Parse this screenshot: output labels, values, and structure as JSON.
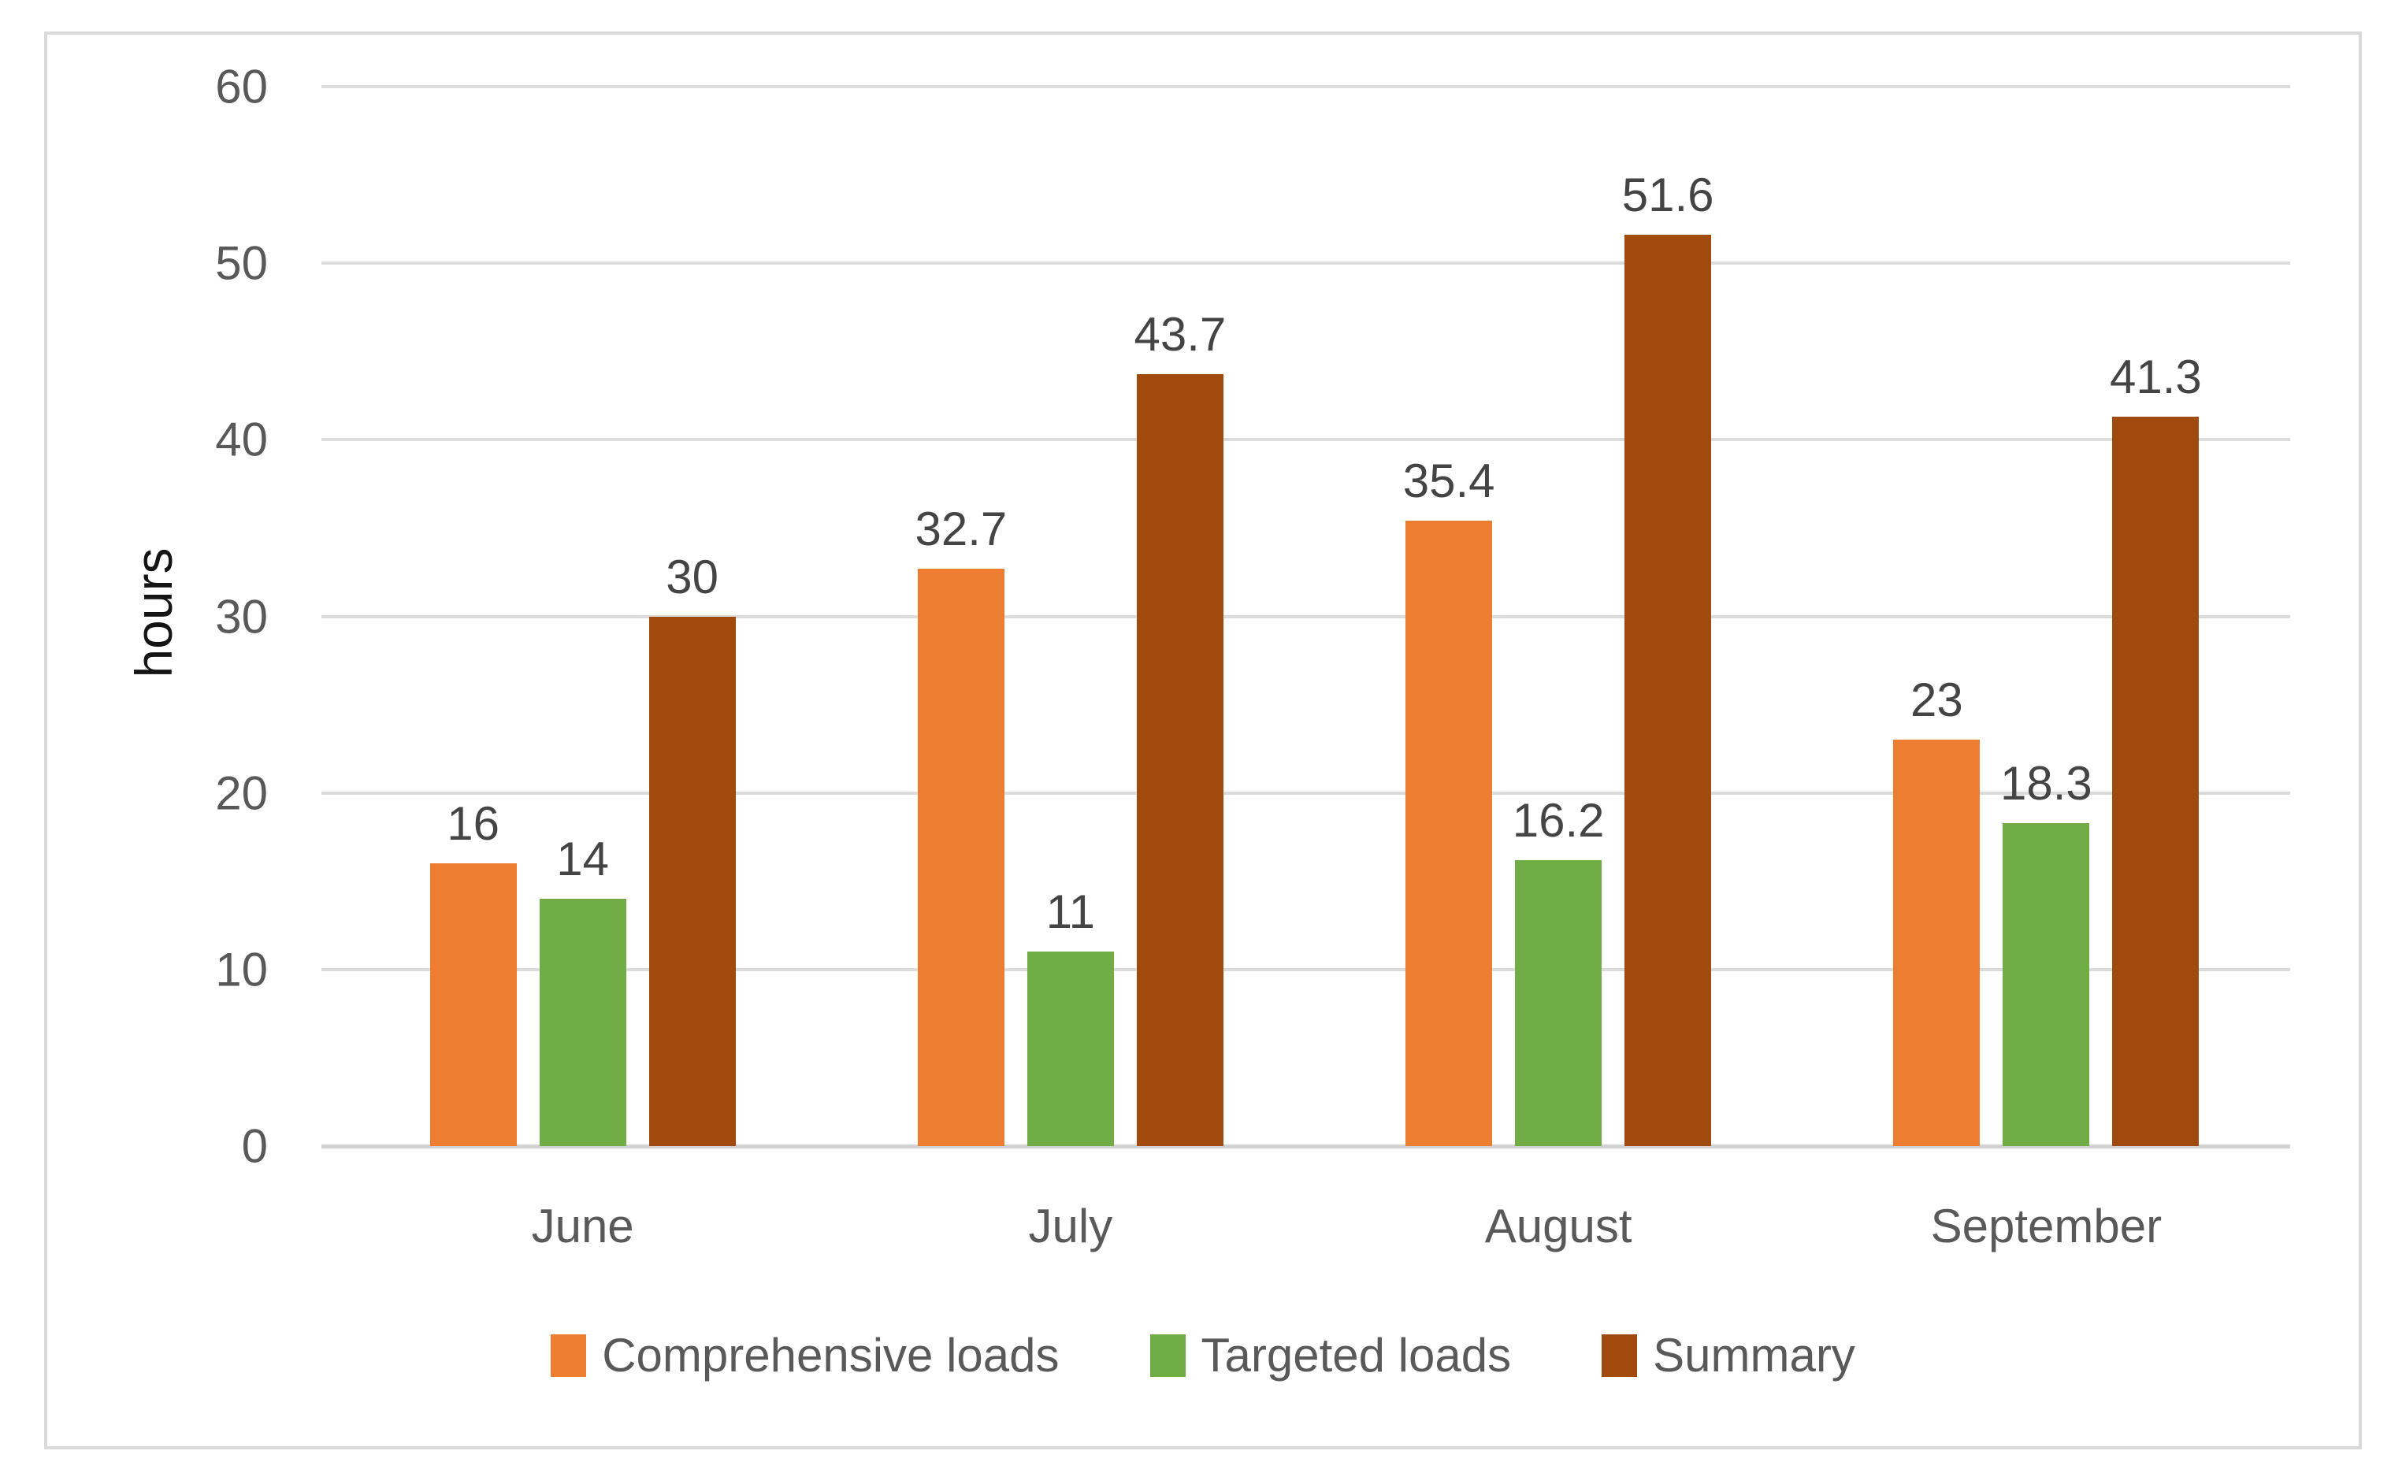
{
  "chart_data": {
    "type": "bar",
    "title": "",
    "xlabel": "",
    "ylabel": "hours",
    "ylim": [
      0,
      60
    ],
    "ytick_step": 10,
    "yticks": [
      "0",
      "10",
      "20",
      "30",
      "40",
      "50",
      "60"
    ],
    "categories": [
      "June",
      "July",
      "August",
      "September"
    ],
    "series": [
      {
        "name": "Comprehensive loads",
        "color": "#ED7D31",
        "values": [
          16,
          32.7,
          35.4,
          23
        ],
        "labels": [
          "16",
          "32.7",
          "35.4",
          "23"
        ]
      },
      {
        "name": "Targeted loads",
        "color": "#70AD47",
        "values": [
          14,
          11,
          16.2,
          18.3
        ],
        "labels": [
          "14",
          "11",
          "16.2",
          "18.3"
        ]
      },
      {
        "name": "Summary",
        "color": "#A04A0D",
        "values": [
          30,
          43.7,
          51.6,
          41.3
        ],
        "labels": [
          "30",
          "43.7",
          "51.6",
          "41.3"
        ]
      }
    ],
    "grid": true,
    "legend_position": "bottom"
  },
  "colors": {
    "background": "#FFFFFF",
    "frame_border": "#D9D9D9",
    "gridline": "#DCDCDC",
    "baseline": "#D2D2D2",
    "tick_text": "#595959",
    "category_text": "#595959",
    "data_label_text": "#444444",
    "legend_text": "#595959",
    "ylabel_text": "#141414"
  }
}
